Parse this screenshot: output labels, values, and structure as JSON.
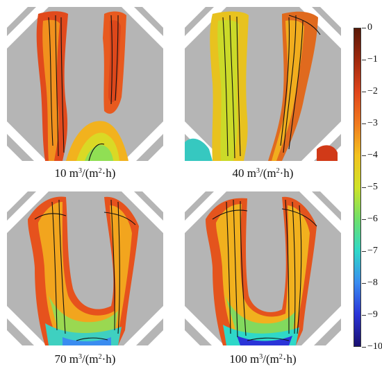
{
  "panels": [
    {
      "flow_value": "10",
      "unit_prefix": " m",
      "sup1": "3",
      "mid": "/(m",
      "sup2": "2",
      "unit_suffix": "·h)"
    },
    {
      "flow_value": "40",
      "unit_prefix": " m",
      "sup1": "3",
      "mid": "/(m",
      "sup2": "2",
      "unit_suffix": "·h)"
    },
    {
      "flow_value": "70",
      "unit_prefix": " m",
      "sup1": "3",
      "mid": "/(m",
      "sup2": "2",
      "unit_suffix": "·h)"
    },
    {
      "flow_value": "100",
      "unit_prefix": " m",
      "sup1": "3",
      "mid": "/(m",
      "sup2": "2",
      "unit_suffix": "·h)"
    }
  ],
  "colorbar": {
    "ticks": [
      "0",
      "−1",
      "−2",
      "−3",
      "−4",
      "−5",
      "−6",
      "−7",
      "−8",
      "−9",
      "−10"
    ],
    "colors": [
      "#5a1a08",
      "#a0290d",
      "#e0451b",
      "#f07a1e",
      "#f3c21e",
      "#cfe327",
      "#6fe06a",
      "#2fd8c8",
      "#3a8cf0",
      "#2a34d8",
      "#1a1070"
    ]
  }
}
